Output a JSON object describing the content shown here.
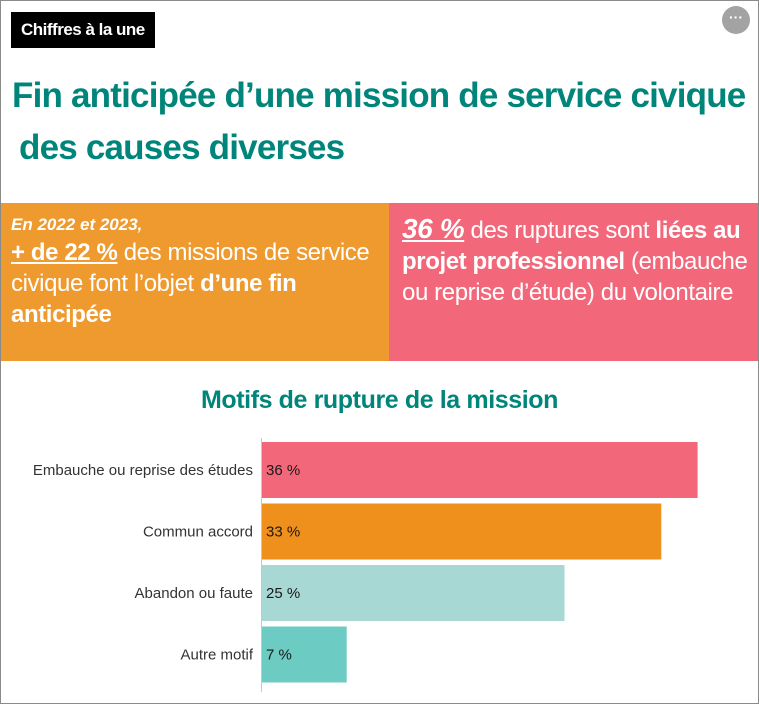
{
  "badge": "Chiffres à la une",
  "more_button": "···",
  "title": {
    "line1": "Fin anticipée d’une mission de service civique",
    "line2": "des causes diverses"
  },
  "left_box": {
    "intro": "En 2022 et 2023,",
    "highlight": "+ de 22 %",
    "text1": " des missions de service civique font l’objet ",
    "text2": "d’une fin anticipée",
    "color": "#ef9a2e"
  },
  "right_box": {
    "highlight": "36 %",
    "text1": " des ruptures sont ",
    "text2": "liées au projet professionnel",
    "text3": " (embauche ou reprise d’étude) du volontaire",
    "color": "#f2677a"
  },
  "chart_data": {
    "type": "bar",
    "orientation": "horizontal",
    "title": "Motifs de rupture de la mission",
    "categories": [
      "Embauche ou reprise des études",
      "Commun accord",
      "Abandon ou faute",
      "Autre motif"
    ],
    "values": [
      36,
      33,
      25,
      7
    ],
    "value_labels": [
      "36 %",
      "33 %",
      "25 %",
      "7 %"
    ],
    "colors": [
      "#f2677a",
      "#ef8f1c",
      "#a7d8d4",
      "#6ccbc2"
    ],
    "xlim": [
      0,
      40
    ],
    "grid": false,
    "legend": "none"
  }
}
